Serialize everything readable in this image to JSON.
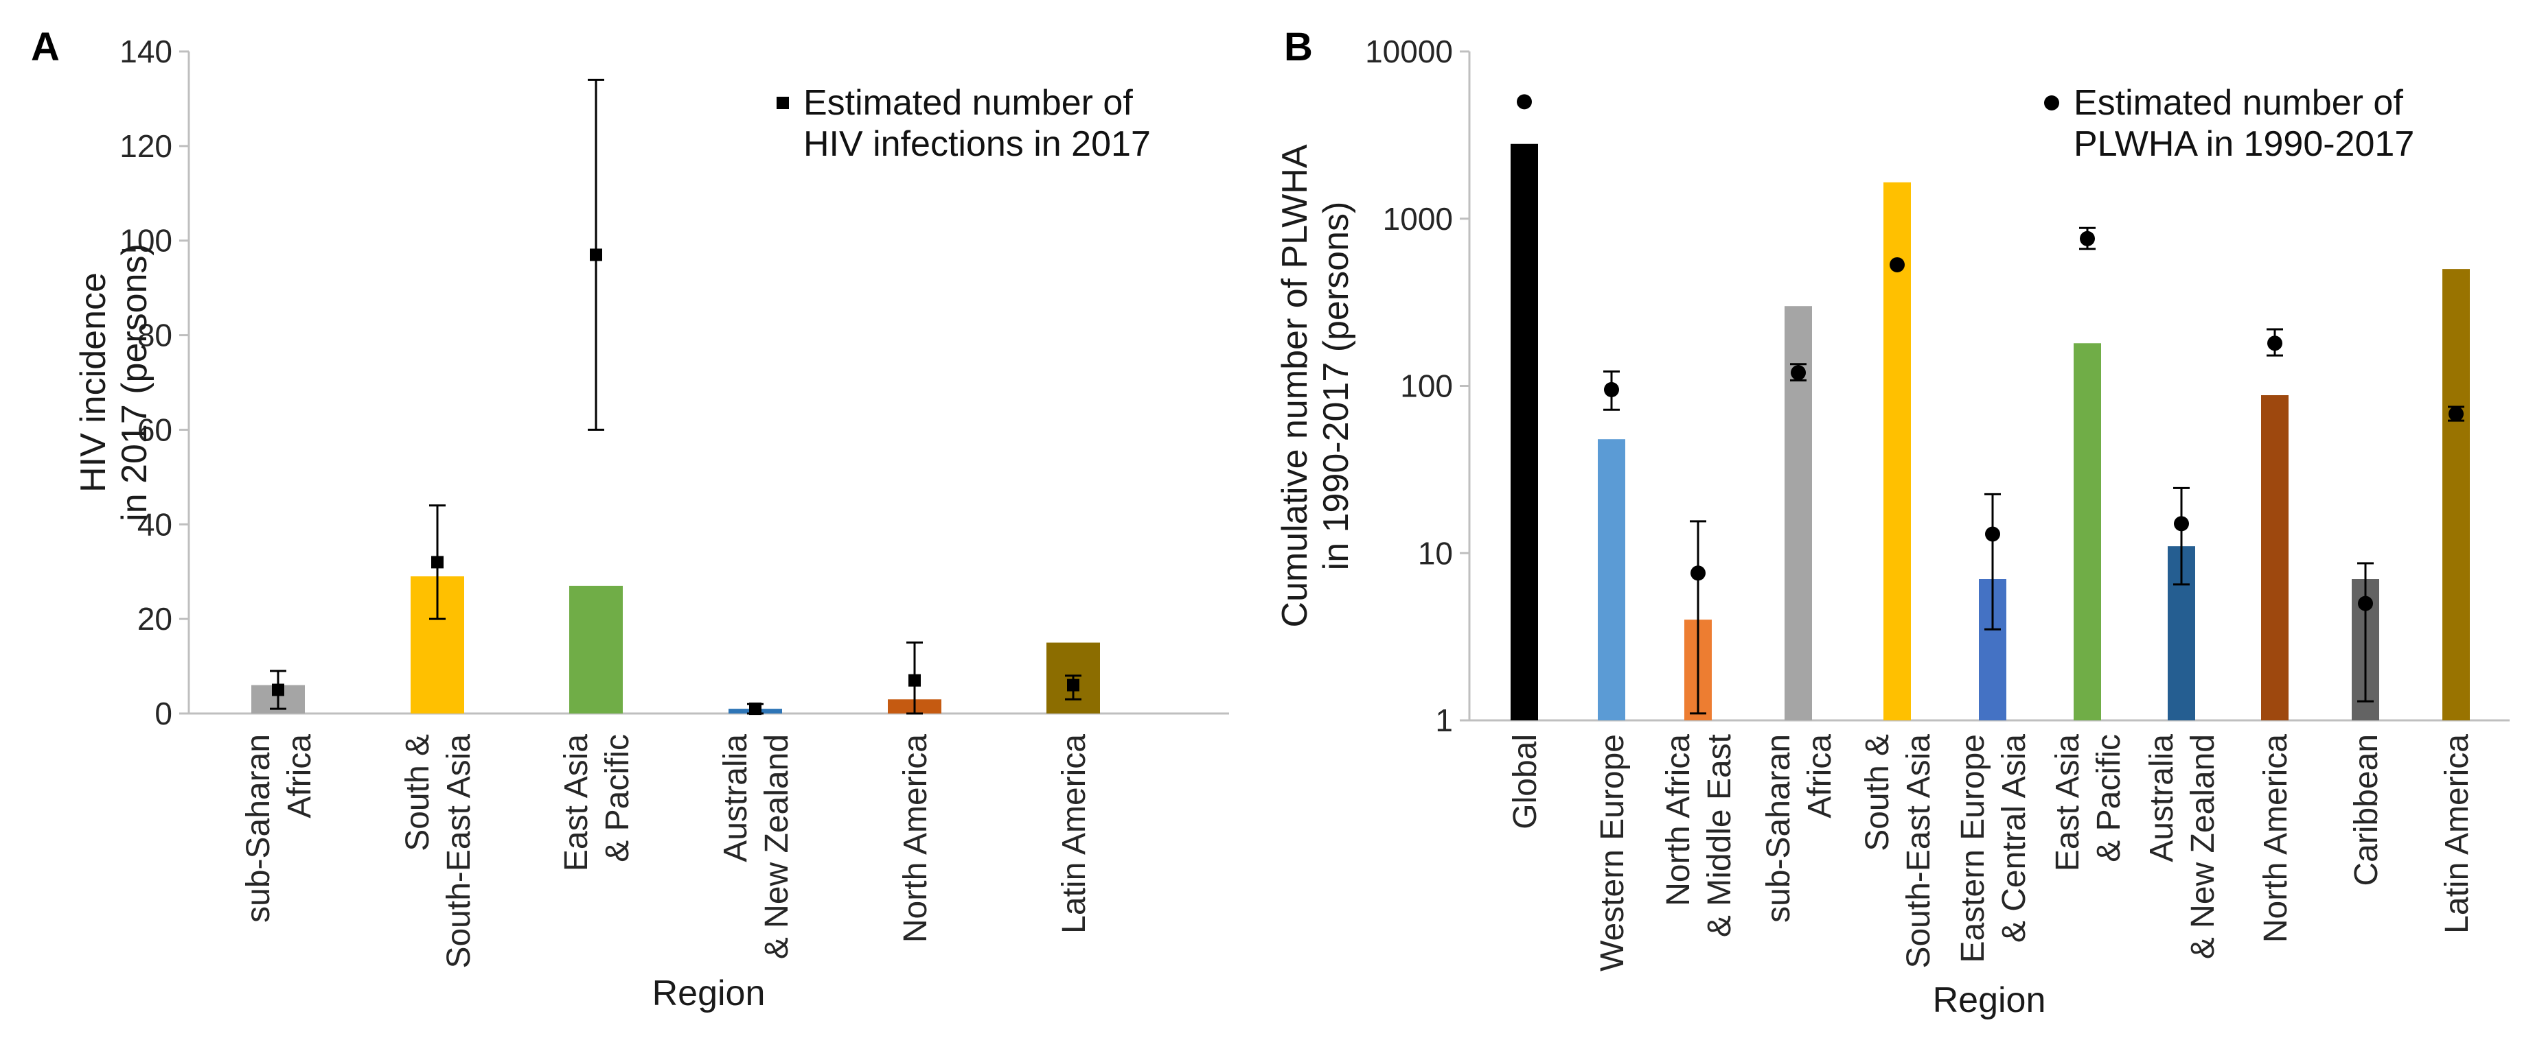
{
  "chart_data": [
    {
      "panel": "A",
      "type": "bar",
      "scale": "linear",
      "ylabel_lines": [
        "HIV incidence",
        "in 2017 (persons)"
      ],
      "xlabel": "Region",
      "ylim": [
        0,
        140
      ],
      "yticks": [
        0,
        20,
        40,
        60,
        80,
        100,
        120,
        140
      ],
      "legend": {
        "lines": [
          "Estimated number of",
          "HIV infections in 2017"
        ],
        "marker": "square",
        "position": "top-right"
      },
      "categories": [
        {
          "lines": [
            "sub-Saharan",
            "Africa"
          ],
          "value": 6,
          "color": "#a5a5a5",
          "estimate": 5,
          "err_low": 1,
          "err_high": 9
        },
        {
          "lines": [
            "South &",
            "South-East Asia"
          ],
          "value": 29,
          "color": "#ffc000",
          "estimate": 32,
          "err_low": 20,
          "err_high": 44
        },
        {
          "lines": [
            "East Asia",
            "& Pacific"
          ],
          "value": 27,
          "color": "#70ad47",
          "estimate": 97,
          "err_low": 60,
          "err_high": 134
        },
        {
          "lines": [
            "Australia",
            "& New Zealand"
          ],
          "value": 1,
          "color": "#2e75b6",
          "estimate": 1,
          "err_low": 0,
          "err_high": 2
        },
        {
          "lines": [
            "North America"
          ],
          "value": 3,
          "color": "#c55a11",
          "estimate": 7,
          "err_low": 0,
          "err_high": 15
        },
        {
          "lines": [
            "Latin America"
          ],
          "value": 15,
          "color": "#8c6d00",
          "estimate": 6,
          "err_low": 3,
          "err_high": 8
        }
      ]
    },
    {
      "panel": "B",
      "type": "bar",
      "scale": "log",
      "ylabel_lines": [
        "Cumulative number of PLWHA",
        "in 1990-2017 (persons)"
      ],
      "xlabel": "Region",
      "ylim": [
        1,
        10000
      ],
      "yticks": [
        1,
        10,
        100,
        1000,
        10000
      ],
      "legend": {
        "lines": [
          "Estimated number of",
          "PLWHA in 1990-2017"
        ],
        "marker": "circle",
        "position": "top-right"
      },
      "categories": [
        {
          "lines": [
            "Global"
          ],
          "value": 2800,
          "color": "#000000",
          "estimate": 5000
        },
        {
          "lines": [
            "Western Europe"
          ],
          "value": 48,
          "color": "#5b9bd5",
          "estimate": 95,
          "err_low": 72,
          "err_high": 122
        },
        {
          "lines": [
            "North Africa",
            "& Middle East"
          ],
          "value": 4,
          "color": "#ed7d31",
          "estimate": 7.6,
          "err_low": 1.1,
          "err_high": 15.5
        },
        {
          "lines": [
            "sub-Saharan",
            "Africa"
          ],
          "value": 300,
          "color": "#a5a5a5",
          "estimate": 120,
          "err_low": 108,
          "err_high": 135
        },
        {
          "lines": [
            "South &",
            "South-East Asia"
          ],
          "value": 1650,
          "color": "#ffc000",
          "estimate": 530
        },
        {
          "lines": [
            "Eastern Europe",
            "& Central Asia"
          ],
          "value": 7,
          "color": "#4472c4",
          "estimate": 13,
          "err_low": 3.5,
          "err_high": 22.5
        },
        {
          "lines": [
            "East Asia",
            "& Pacific"
          ],
          "value": 180,
          "color": "#70ad47",
          "estimate": 760,
          "err_low": 660,
          "err_high": 880
        },
        {
          "lines": [
            "Australia",
            "& New Zealand"
          ],
          "value": 11,
          "color": "#255e91",
          "estimate": 15,
          "err_low": 6.5,
          "err_high": 24.5
        },
        {
          "lines": [
            "North America"
          ],
          "value": 88,
          "color": "#9e480e",
          "estimate": 180,
          "err_low": 152,
          "err_high": 218
        },
        {
          "lines": [
            "Caribbean"
          ],
          "value": 7,
          "color": "#636363",
          "estimate": 5,
          "err_low": 1.3,
          "err_high": 8.7
        },
        {
          "lines": [
            "Latin America"
          ],
          "value": 500,
          "color": "#997300",
          "estimate": 68,
          "err_low": 62,
          "err_high": 75
        }
      ]
    }
  ]
}
